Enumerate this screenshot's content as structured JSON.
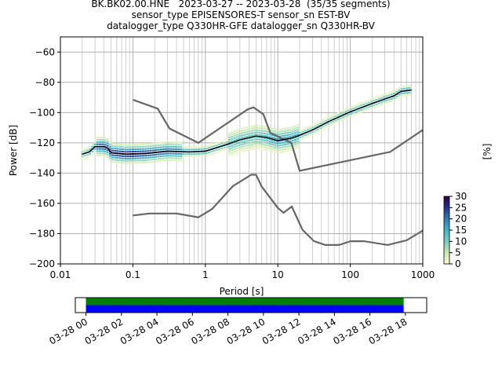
{
  "chart_data": [
    {
      "type": "heatmap",
      "title_lines": [
        "BK.BK02.00.HNE   2023-03-27 -- 2023-03-28  (35/35 segments)",
        "sensor_type EPISENSORES-T sensor_sn EST-BV",
        "datalogger_type Q330HR-GFE datalogger_sn Q330HR-BV"
      ],
      "xlabel": "Period [s]",
      "ylabel": "Power [dB]",
      "xscale": "log",
      "xlim": [
        0.01,
        1000
      ],
      "ylim": [
        -200,
        -50
      ],
      "x_ticks": [
        0.01,
        0.1,
        1,
        10,
        100,
        1000
      ],
      "x_tick_labels": [
        "0.01",
        "0.1",
        "1",
        "10",
        "100",
        "1000"
      ],
      "y_ticks": [
        -200,
        -180,
        -160,
        -140,
        -120,
        -100,
        -80,
        -60
      ],
      "y_tick_labels": [
        "−200",
        "−180",
        "−160",
        "−140",
        "−120",
        "−100",
        "−80",
        "−60"
      ],
      "grid": true,
      "colorbar": {
        "label": "[%]",
        "range": [
          0,
          30
        ],
        "ticks": [
          0,
          5,
          10,
          15,
          20,
          25,
          30
        ],
        "tick_labels": [
          "0",
          "5",
          "10",
          "15",
          "20",
          "25",
          "30"
        ],
        "colors": [
          "#ffffcc",
          "#c7e9b4",
          "#7fcdbb",
          "#41b6c4",
          "#2c7fb8",
          "#253494",
          "#2d004b"
        ]
      },
      "curve_color": "#666666",
      "mean_color": "#000000",
      "noise_model_high": [
        [
          0.1,
          -91.5
        ],
        [
          0.22,
          -97.4
        ],
        [
          0.32,
          -110.5
        ],
        [
          0.8,
          -120
        ],
        [
          3.8,
          -98
        ],
        [
          4.6,
          -96.5
        ],
        [
          6.3,
          -101
        ],
        [
          7.9,
          -113.5
        ],
        [
          15.4,
          -120
        ],
        [
          20,
          -138.5
        ],
        [
          354.8,
          -126
        ],
        [
          1000,
          -111.5
        ]
      ],
      "noise_model_low": [
        [
          0.1,
          -168
        ],
        [
          0.17,
          -166.7
        ],
        [
          0.4,
          -166.7
        ],
        [
          0.8,
          -169.2
        ],
        [
          1.24,
          -163.7
        ],
        [
          2.4,
          -148.6
        ],
        [
          4.3,
          -141.1
        ],
        [
          5,
          -141.1
        ],
        [
          6,
          -149
        ],
        [
          10,
          -163
        ],
        [
          12,
          -166.2
        ],
        [
          15.6,
          -162.1
        ],
        [
          21.9,
          -177.5
        ],
        [
          31.6,
          -185
        ],
        [
          45,
          -187.5
        ],
        [
          70,
          -187.5
        ],
        [
          101,
          -185
        ],
        [
          154,
          -185
        ],
        [
          328,
          -187.5
        ],
        [
          600,
          -184.4
        ],
        [
          1000,
          -178
        ]
      ],
      "mean_psd": [
        [
          0.02,
          -127.5
        ],
        [
          0.025,
          -126
        ],
        [
          0.03,
          -122.5
        ],
        [
          0.04,
          -122.5
        ],
        [
          0.045,
          -123.5
        ],
        [
          0.05,
          -126.5
        ],
        [
          0.08,
          -127.5
        ],
        [
          0.15,
          -127
        ],
        [
          0.3,
          -125.5
        ],
        [
          0.6,
          -126
        ],
        [
          1,
          -125.5
        ],
        [
          2,
          -121
        ],
        [
          3,
          -118
        ],
        [
          5,
          -115.5
        ],
        [
          7,
          -116.5
        ],
        [
          10,
          -118.5
        ],
        [
          15,
          -117
        ],
        [
          20,
          -115
        ],
        [
          30,
          -111.5
        ],
        [
          50,
          -106
        ],
        [
          100,
          -99.5
        ],
        [
          200,
          -94
        ],
        [
          300,
          -91
        ],
        [
          400,
          -89
        ],
        [
          500,
          -86
        ],
        [
          700,
          -85
        ]
      ],
      "histogram_density": [
        [
          0.02,
          -127,
          12
        ],
        [
          0.03,
          -123,
          22
        ],
        [
          0.05,
          -127,
          26
        ],
        [
          0.1,
          -127,
          28
        ],
        [
          0.2,
          -126,
          24
        ],
        [
          0.5,
          -125,
          20
        ],
        [
          1,
          -125,
          18
        ],
        [
          2,
          -120,
          14
        ],
        [
          5,
          -114,
          12
        ],
        [
          10,
          -118,
          18
        ],
        [
          20,
          -114,
          16
        ],
        [
          50,
          -105,
          14
        ],
        [
          100,
          -99,
          16
        ],
        [
          200,
          -93,
          16
        ],
        [
          400,
          -88,
          18
        ],
        [
          600,
          -85,
          20
        ]
      ]
    },
    {
      "type": "timeline",
      "x_tick_labels": [
        "03-28 00",
        "03-28 02",
        "03-28 04",
        "03-28 06",
        "03-28 08",
        "03-28 10",
        "03-28 12",
        "03-28 14",
        "03-28 16",
        "03-28 18"
      ],
      "xlim_hours": [
        -0.6,
        19.2
      ],
      "data_available_hours": [
        0,
        17.9
      ],
      "psd_used_hours": [
        0,
        17.9
      ],
      "colors": {
        "available": "#008000",
        "used": "#0000ff"
      }
    }
  ]
}
